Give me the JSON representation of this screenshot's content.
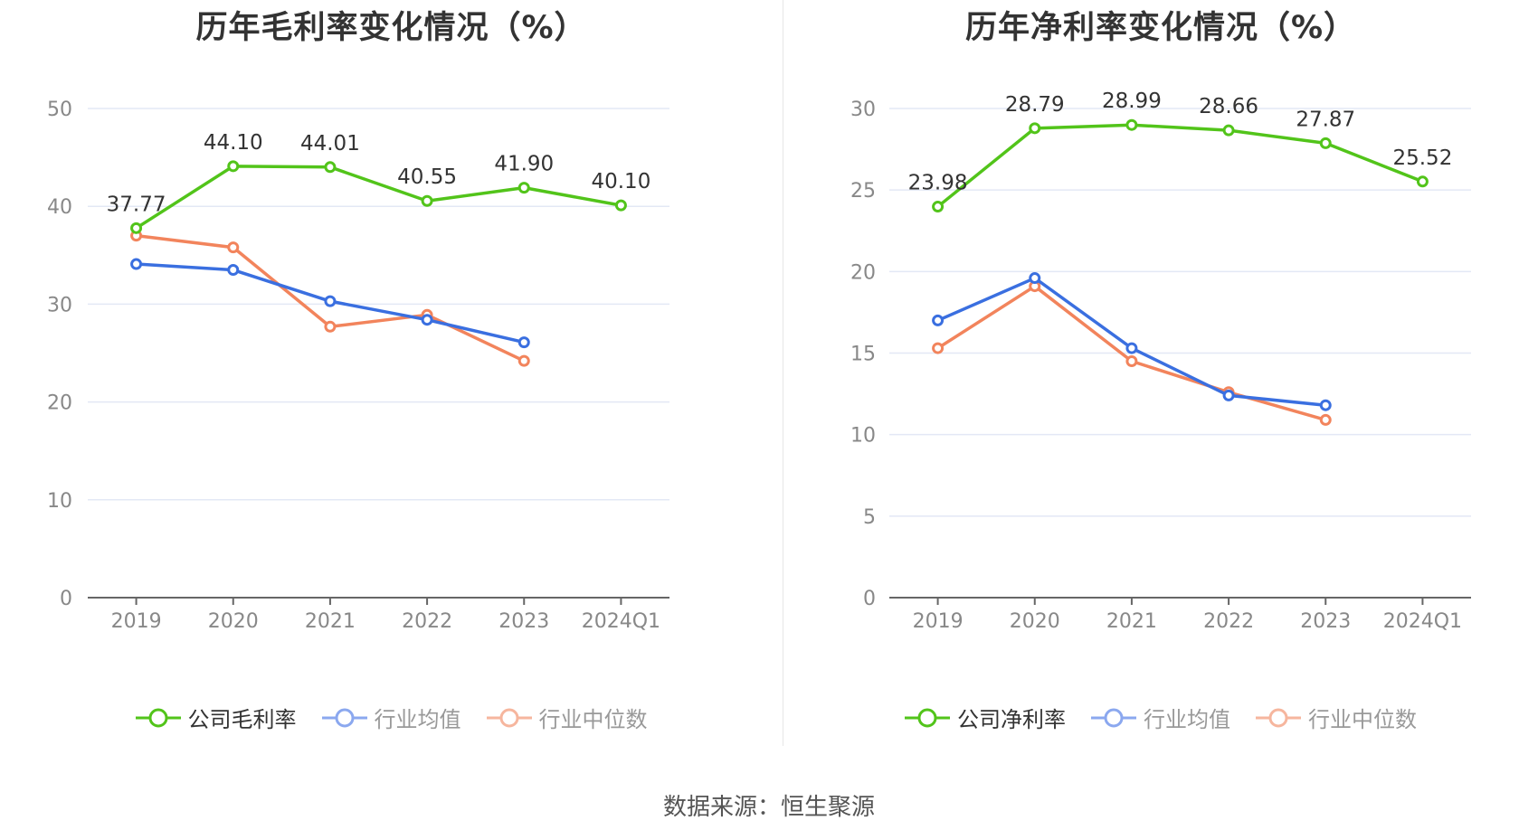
{
  "charts": [
    {
      "title": "历年毛利率变化情况（%）",
      "legend": [
        "公司毛利率",
        "行业均值",
        "行业中位数"
      ]
    },
    {
      "title": "历年净利率变化情况（%）",
      "legend": [
        "公司净利率",
        "行业均值",
        "行业中位数"
      ]
    }
  ],
  "source": "数据来源：恒生聚源",
  "colors": {
    "company": "#52c41a",
    "average": "#3a6fe0",
    "median": "#f2845c",
    "average_legend": "#8ba8ef",
    "median_legend": "#f6b69e",
    "grid": "#e3e8f5",
    "axis": "#666666",
    "tick_text": "#888888",
    "label_text": "#333333"
  },
  "chart_data": [
    {
      "type": "line",
      "title": "历年毛利率变化情况（%）",
      "categories": [
        "2019",
        "2020",
        "2021",
        "2022",
        "2023",
        "2024Q1"
      ],
      "ylim": [
        0,
        50
      ],
      "yticks": [
        0,
        10,
        20,
        30,
        40,
        50
      ],
      "grid": true,
      "legend_position": "bottom",
      "series": [
        {
          "name": "公司毛利率",
          "role": "company",
          "values": [
            37.77,
            44.1,
            44.01,
            40.55,
            41.9,
            40.1
          ],
          "labels": [
            "37.77",
            "44.10",
            "44.01",
            "40.55",
            "41.90",
            "40.10"
          ]
        },
        {
          "name": "行业均值",
          "role": "average",
          "values": [
            34.1,
            33.5,
            30.3,
            28.4,
            26.1,
            null
          ]
        },
        {
          "name": "行业中位数",
          "role": "median",
          "values": [
            37.0,
            35.8,
            27.7,
            28.9,
            24.2,
            null
          ]
        }
      ]
    },
    {
      "type": "line",
      "title": "历年净利率变化情况（%）",
      "categories": [
        "2019",
        "2020",
        "2021",
        "2022",
        "2023",
        "2024Q1"
      ],
      "ylim": [
        0,
        30
      ],
      "yticks": [
        0,
        5,
        10,
        15,
        20,
        25,
        30
      ],
      "grid": true,
      "legend_position": "bottom",
      "series": [
        {
          "name": "公司净利率",
          "role": "company",
          "values": [
            23.98,
            28.79,
            28.99,
            28.66,
            27.87,
            25.52
          ],
          "labels": [
            "23.98",
            "28.79",
            "28.99",
            "28.66",
            "27.87",
            "25.52"
          ]
        },
        {
          "name": "行业均值",
          "role": "average",
          "values": [
            17.0,
            19.6,
            15.3,
            12.4,
            11.8,
            null
          ]
        },
        {
          "name": "行业中位数",
          "role": "median",
          "values": [
            15.3,
            19.1,
            14.5,
            12.6,
            10.9,
            null
          ]
        }
      ]
    }
  ]
}
